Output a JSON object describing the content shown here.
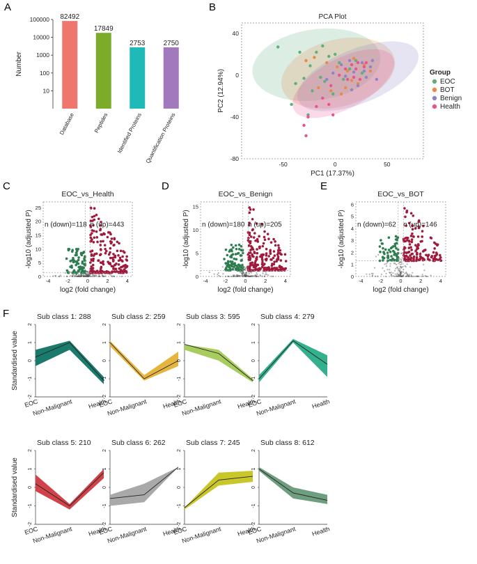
{
  "panels": {
    "A": "A",
    "B": "B",
    "C": "C",
    "D": "D",
    "E": "E",
    "F": "F"
  },
  "colors": {
    "up": "#a01a3c",
    "down": "#2e7d4f",
    "ns": "#555555"
  },
  "chart_data": [
    {
      "id": "A",
      "type": "bar",
      "ylabel": "Number",
      "yscale": "log",
      "ylim": [
        1,
        100000
      ],
      "yticks": [
        "10",
        "100",
        "1000",
        "10000",
        "100000"
      ],
      "categories": [
        "Database",
        "Peptides",
        "Identified Proteins",
        "Quantification Proteins"
      ],
      "values": [
        82492,
        17849,
        2753,
        2750
      ],
      "labels": [
        "82492",
        "17849",
        "2753",
        "2750"
      ],
      "colors": [
        "#ef766d",
        "#7cab2a",
        "#1fbab8",
        "#a379bd"
      ]
    },
    {
      "id": "B",
      "type": "scatter",
      "title": "PCA Plot",
      "xlabel": "PC1 (17.37%)",
      "ylabel": "PC2 (12.94%)",
      "xlim": [
        -90,
        85
      ],
      "ylim": [
        -80,
        50
      ],
      "xticks": [
        "-50",
        "0",
        "50"
      ],
      "yticks": [
        "40",
        "0",
        "-40",
        "-80"
      ],
      "legend_title": "Group",
      "groups": [
        {
          "name": "EOC",
          "color": "#5fae7e",
          "ellipse": {
            "cx": -18,
            "cy": 10,
            "rx": 62,
            "ry": 34,
            "angle": -8
          },
          "points": [
            [
              -55,
              27
            ],
            [
              -42,
              -28
            ],
            [
              -38,
              -8
            ],
            [
              -30,
              -3
            ],
            [
              -26,
              -38
            ],
            [
              -22,
              -15
            ],
            [
              -18,
              22
            ],
            [
              -14,
              -2
            ],
            [
              -10,
              -6
            ],
            [
              -6,
              18
            ],
            [
              -2,
              -18
            ],
            [
              0,
              20
            ],
            [
              4,
              12
            ],
            [
              8,
              -4
            ],
            [
              14,
              6
            ],
            [
              20,
              14
            ],
            [
              26,
              2
            ],
            [
              -24,
              9
            ],
            [
              -34,
              22
            ],
            [
              -12,
              28
            ]
          ]
        },
        {
          "name": "BOT",
          "color": "#e8894a",
          "ellipse": {
            "cx": 3,
            "cy": 2,
            "rx": 56,
            "ry": 32,
            "angle": -15
          },
          "points": [
            [
              -20,
              17
            ],
            [
              -16,
              -12
            ],
            [
              -8,
              12
            ],
            [
              -4,
              -15
            ],
            [
              2,
              8
            ],
            [
              6,
              -18
            ],
            [
              12,
              4
            ],
            [
              18,
              16
            ],
            [
              22,
              -8
            ],
            [
              28,
              10
            ],
            [
              -28,
              14
            ],
            [
              10,
              -12
            ],
            [
              16,
              -5
            ],
            [
              34,
              4
            ]
          ]
        },
        {
          "name": "Benign",
          "color": "#8f84c6",
          "ellipse": {
            "cx": 22,
            "cy": -1,
            "rx": 62,
            "ry": 26,
            "angle": -22
          },
          "points": [
            [
              -2,
              2
            ],
            [
              6,
              10
            ],
            [
              10,
              -1
            ],
            [
              14,
              14
            ],
            [
              18,
              3
            ],
            [
              22,
              -10
            ],
            [
              26,
              12
            ],
            [
              30,
              -2
            ],
            [
              34,
              8
            ],
            [
              40,
              -4
            ],
            [
              16,
              -14
            ],
            [
              28,
              4
            ],
            [
              36,
              14
            ],
            [
              -8,
              -4
            ]
          ]
        },
        {
          "name": "Health",
          "color": "#e5568f",
          "ellipse": {
            "cx": 8,
            "cy": -8,
            "rx": 54,
            "ry": 24,
            "angle": -28
          },
          "points": [
            [
              -28,
              -58
            ],
            [
              -30,
              -48
            ],
            [
              -26,
              -40
            ],
            [
              -18,
              -30
            ],
            [
              -12,
              -22
            ],
            [
              -4,
              -10
            ],
            [
              4,
              0
            ],
            [
              10,
              6
            ],
            [
              16,
              10
            ],
            [
              22,
              12
            ],
            [
              28,
              8
            ],
            [
              12,
              -4
            ],
            [
              -6,
              -28
            ],
            [
              -2,
              -38
            ],
            [
              18,
              -2
            ],
            [
              20,
              6
            ],
            [
              30,
              12
            ],
            [
              24,
              -4
            ]
          ]
        }
      ]
    },
    {
      "id": "C",
      "type": "scatter",
      "title": "EOC_vs_Health",
      "xlabel": "log2 (fold change)",
      "ylabel": "-log10 (adjusted P)",
      "xlim": [
        -4.5,
        4.5
      ],
      "ylim": [
        0,
        27
      ],
      "xticks": [
        "-4",
        "-2",
        "0",
        "2",
        "4"
      ],
      "yticks": [
        "0",
        "5",
        "10",
        "15",
        "20",
        "25"
      ],
      "down_label": "n (down)=118",
      "up_label": "n (up)=443",
      "n_down": 118,
      "n_up": 443,
      "threshold_y": 1.3,
      "fc_cut": 0.26
    },
    {
      "id": "D",
      "type": "scatter",
      "title": "EOC_vs_Benign",
      "xlabel": "log2 (fold change)",
      "ylabel": "-log10 (adjusted P)",
      "xlim": [
        -4.5,
        4.5
      ],
      "ylim": [
        0,
        16
      ],
      "xticks": [
        "-4",
        "-2",
        "0",
        "2",
        "4"
      ],
      "yticks": [
        "0",
        "5",
        "10",
        "15"
      ],
      "down_label": "n (down)=180",
      "up_label": "n (up)=205",
      "n_down": 180,
      "n_up": 205,
      "threshold_y": 1.3,
      "fc_cut": 0.26
    },
    {
      "id": "E",
      "type": "scatter",
      "title": "EOC_vs_BOT",
      "xlabel": "log2 (fold change)",
      "ylabel": "-log10 (adjusted P)",
      "xlim": [
        -4.5,
        4.5
      ],
      "ylim": [
        0,
        6.2
      ],
      "xticks": [
        "-4",
        "-2",
        "0",
        "2",
        "4"
      ],
      "yticks": [
        "0",
        "1",
        "2",
        "3",
        "4",
        "5",
        "6"
      ],
      "down_label": "n (down)=62",
      "up_label": "n (up)=146",
      "n_down": 62,
      "n_up": 146,
      "threshold_y": 1.3,
      "fc_cut": 0.26
    },
    {
      "id": "F",
      "type": "line",
      "ylabel": "Standardised value",
      "categories": [
        "EOC",
        "Non-Malignant",
        "Health"
      ],
      "ylim": [
        -2,
        2
      ],
      "yticks": [
        "2",
        "1",
        "0",
        "-1",
        "-2"
      ],
      "subclasses": [
        {
          "title": "Sub class 1: 288",
          "color": "#1a7a6b",
          "mean": [
            0.2,
            1.0,
            -1.1
          ],
          "upper": [
            0.6,
            1.1,
            -0.9
          ],
          "lower": [
            -0.3,
            0.6,
            -1.3
          ]
        },
        {
          "title": "Sub class 2: 259",
          "color": "#e6b540",
          "mean": [
            1.0,
            -1.0,
            0.0
          ],
          "upper": [
            1.1,
            -0.8,
            0.5
          ],
          "lower": [
            0.8,
            -1.1,
            -0.3
          ]
        },
        {
          "title": "Sub class 3: 595",
          "color": "#a8cc5e",
          "mean": [
            0.9,
            0.4,
            -1.1
          ],
          "upper": [
            0.9,
            0.6,
            -1.0
          ],
          "lower": [
            0.6,
            0.0,
            -1.2
          ]
        },
        {
          "title": "Sub class 4: 279",
          "color": "#35b08f",
          "mean": [
            -1.0,
            1.1,
            -0.2
          ],
          "upper": [
            -0.8,
            1.2,
            0.3
          ],
          "lower": [
            -1.2,
            1.0,
            -0.9
          ]
        },
        {
          "title": "Sub class 5: 210",
          "color": "#d0434a",
          "mean": [
            0.2,
            -1.0,
            0.8
          ],
          "upper": [
            0.7,
            -0.9,
            1.0
          ],
          "lower": [
            -0.2,
            -1.2,
            0.5
          ]
        },
        {
          "title": "Sub class 6: 262",
          "color": "#a9a9a9",
          "mean": [
            -0.6,
            -0.4,
            1.1
          ],
          "upper": [
            -0.4,
            0.2,
            1.1
          ],
          "lower": [
            -1.0,
            -0.8,
            1.1
          ]
        },
        {
          "title": "Sub class 7: 245",
          "color": "#c9c62a",
          "mean": [
            -1.1,
            0.4,
            0.6
          ],
          "upper": [
            -1.1,
            0.8,
            0.9
          ],
          "lower": [
            -1.2,
            0.1,
            0.3
          ]
        },
        {
          "title": "Sub class 8: 612",
          "color": "#6e9e7f",
          "mean": [
            1.0,
            -0.3,
            -0.7
          ],
          "upper": [
            1.1,
            0.0,
            -0.4
          ],
          "lower": [
            0.9,
            -0.6,
            -0.9
          ]
        }
      ]
    }
  ]
}
